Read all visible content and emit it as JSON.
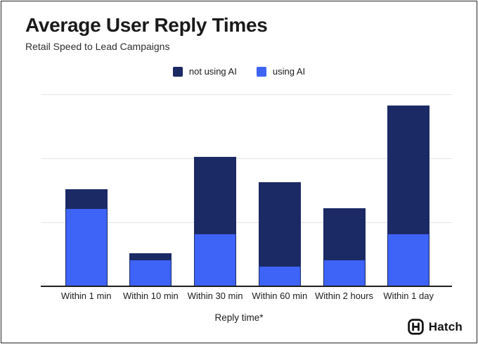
{
  "header": {
    "title": "Average User Reply Times",
    "subtitle": "Retail Speed to Lead Campaigns"
  },
  "legend": {
    "items": [
      {
        "label": "not using AI",
        "color": "#1b2a64"
      },
      {
        "label": "using AI",
        "color": "#3e63f7"
      }
    ]
  },
  "chart_data": {
    "type": "bar",
    "stacked": true,
    "title": "Average User Reply Times",
    "subtitle": "Retail Speed to Lead Campaigns",
    "xlabel": "Reply time*",
    "ylabel": "",
    "categories": [
      "Within 1 min",
      "Within 10 min",
      "Within 30 min",
      "Within 60 min",
      "Within 2 hours",
      "Within 1 day"
    ],
    "series": [
      {
        "name": "using AI",
        "color": "#3e63f7",
        "values": [
          12,
          4,
          8,
          3,
          4,
          8
        ]
      },
      {
        "name": "not using AI",
        "color": "#1b2a64",
        "values": [
          3,
          1,
          12,
          13,
          8,
          20
        ]
      }
    ],
    "stack_totals": [
      15,
      5,
      20,
      16,
      12,
      28
    ],
    "ylim": [
      0,
      30
    ],
    "gridline_interval": 10,
    "y_axis_labels_visible": false,
    "grid": true,
    "legend_position": "top"
  },
  "footer": {
    "brand": "Hatch"
  },
  "colors": {
    "navy": "#1b2a64",
    "blue": "#3e63f7",
    "grid": "#e4e4e4",
    "axis": "#1f1f1f",
    "text": "#1a1a1a"
  }
}
